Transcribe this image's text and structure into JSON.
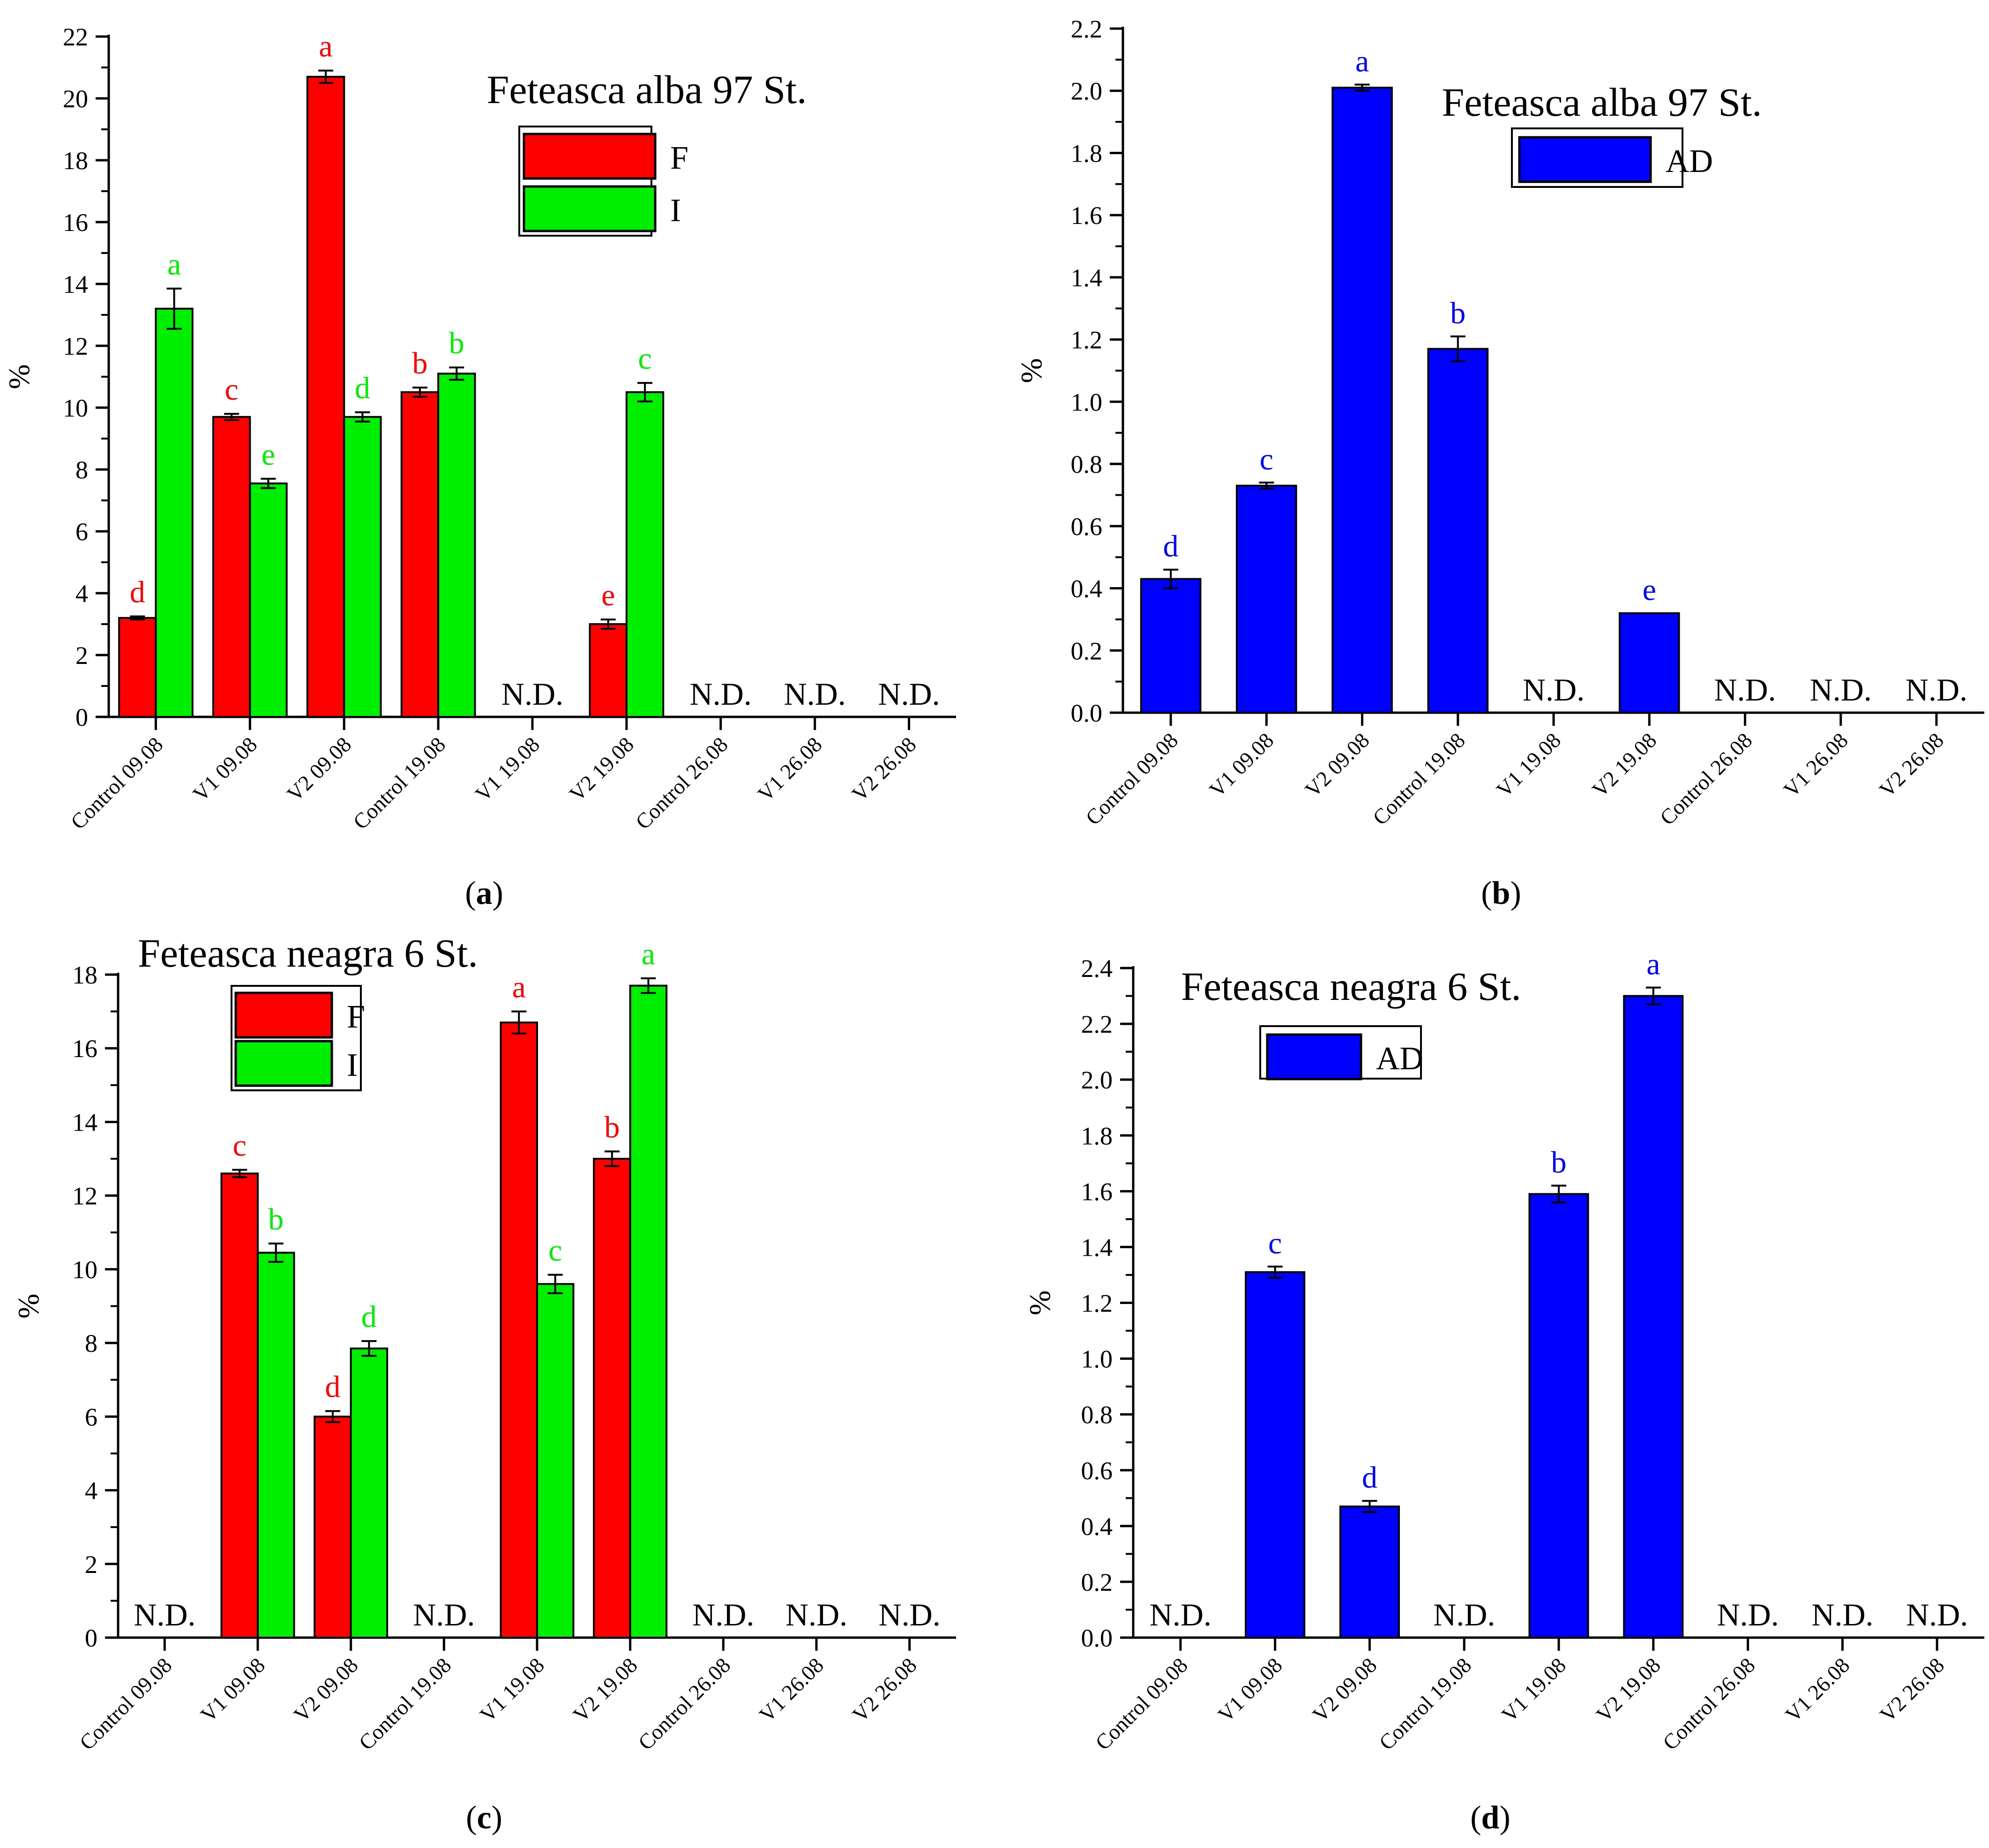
{
  "chart_data": [
    {
      "panel": "a",
      "type": "bar",
      "title": "Feteasca alba 97 St.",
      "ylabel": "%",
      "xlabel": "",
      "ylim": [
        0,
        22
      ],
      "ytick_step": 2,
      "yticks": [
        "0",
        "2",
        "4",
        "6",
        "8",
        "10",
        "12",
        "14",
        "16",
        "18",
        "20",
        "22"
      ],
      "categories": [
        "Control 09.08",
        "V1 09.08",
        "V2 09.08",
        "Control 19.08",
        "V1 19.08",
        "V2 19.08",
        "Control 26.08",
        "V1 26.08",
        "V2 26.08"
      ],
      "legend": {
        "placement": "top-center",
        "entries": [
          "F",
          "I"
        ]
      },
      "series": [
        {
          "name": "F",
          "color": "#ff0000",
          "values": [
            3.2,
            9.7,
            20.7,
            10.5,
            null,
            3.0,
            null,
            null,
            null
          ],
          "errors": [
            0.05,
            0.1,
            0.2,
            0.15,
            null,
            0.15,
            null,
            null,
            null
          ],
          "letters": [
            "d",
            "c",
            "a",
            "b",
            "",
            "e",
            "",
            "",
            ""
          ]
        },
        {
          "name": "I",
          "color": "#00ee00",
          "values": [
            13.2,
            7.55,
            9.7,
            11.1,
            null,
            10.5,
            null,
            null,
            null
          ],
          "errors": [
            0.65,
            0.15,
            0.15,
            0.2,
            null,
            0.3,
            null,
            null,
            null
          ],
          "letters": [
            "a",
            "e",
            "d",
            "b",
            "",
            "c",
            "",
            "",
            ""
          ]
        }
      ],
      "nd_label": "N.D.",
      "nd_categories": [
        4,
        6,
        7,
        8
      ],
      "caption_letter": "a"
    },
    {
      "panel": "b",
      "type": "bar",
      "title": "Feteasca alba 97 St.",
      "ylabel": "%",
      "xlabel": "",
      "ylim": [
        0,
        2.2
      ],
      "ytick_step": 0.2,
      "yticks": [
        "0.0",
        "0.2",
        "0.4",
        "0.6",
        "0.8",
        "1.0",
        "1.2",
        "1.4",
        "1.6",
        "1.8",
        "2.0",
        "2.2"
      ],
      "categories": [
        "Control 09.08",
        "V1 09.08",
        "V2 09.08",
        "Control 19.08",
        "V1 19.08",
        "V2 19.08",
        "Control 26.08",
        "V1 26.08",
        "V2 26.08"
      ],
      "legend": {
        "placement": "top-right",
        "entries": [
          "AD"
        ]
      },
      "series": [
        {
          "name": "AD",
          "color": "#0000ff",
          "values": [
            0.43,
            0.73,
            2.01,
            1.17,
            null,
            0.32,
            null,
            null,
            null
          ],
          "errors": [
            0.03,
            0.01,
            0.01,
            0.04,
            null,
            0.0,
            null,
            null,
            null
          ],
          "letters": [
            "d",
            "c",
            "a",
            "b",
            "",
            "e",
            "",
            "",
            ""
          ]
        }
      ],
      "nd_label": "N.D.",
      "nd_categories": [
        4,
        6,
        7,
        8
      ],
      "caption_letter": "b"
    },
    {
      "panel": "c",
      "type": "bar",
      "title": "Feteasca neagra 6 St.",
      "ylabel": "%",
      "xlabel": "",
      "ylim": [
        0,
        18
      ],
      "ytick_step": 2,
      "yticks": [
        "0",
        "2",
        "4",
        "6",
        "8",
        "10",
        "12",
        "14",
        "16",
        "18"
      ],
      "categories": [
        "Control 09.08",
        "V1 09.08",
        "V2 09.08",
        "Control 19.08",
        "V1 19.08",
        "V2 19.08",
        "Control 26.08",
        "V1 26.08",
        "V2 26.08"
      ],
      "legend": {
        "placement": "top-left",
        "entries": [
          "F",
          "I"
        ]
      },
      "series": [
        {
          "name": "F",
          "color": "#ff0000",
          "values": [
            null,
            12.6,
            6.0,
            null,
            16.7,
            13.0,
            null,
            null,
            null
          ],
          "errors": [
            null,
            0.1,
            0.15,
            null,
            0.3,
            0.2,
            null,
            null,
            null
          ],
          "letters": [
            "",
            "c",
            "d",
            "",
            "a",
            "b",
            "",
            "",
            ""
          ]
        },
        {
          "name": "I",
          "color": "#00ee00",
          "values": [
            null,
            10.45,
            7.85,
            null,
            9.6,
            17.7,
            null,
            null,
            null
          ],
          "errors": [
            null,
            0.25,
            0.2,
            null,
            0.25,
            0.2,
            null,
            null,
            null
          ],
          "letters": [
            "",
            "b",
            "d",
            "",
            "c",
            "a",
            "",
            "",
            ""
          ]
        }
      ],
      "nd_label": "N.D.",
      "nd_categories": [
        0,
        3,
        6,
        7,
        8
      ],
      "caption_letter": "c"
    },
    {
      "panel": "d",
      "type": "bar",
      "title": "Feteasca neagra 6 St.",
      "ylabel": "%",
      "xlabel": "",
      "ylim": [
        0,
        2.4
      ],
      "ytick_step": 0.2,
      "yticks": [
        "0.0",
        "0.2",
        "0.4",
        "0.6",
        "0.8",
        "1.0",
        "1.2",
        "1.4",
        "1.6",
        "1.8",
        "2.0",
        "2.2",
        "2.4"
      ],
      "categories": [
        "Control 09.08",
        "V1 09.08",
        "V2 09.08",
        "Control 19.08",
        "V1 19.08",
        "V2 19.08",
        "Control 26.08",
        "V1 26.08",
        "V2 26.08"
      ],
      "legend": {
        "placement": "top-left",
        "entries": [
          "AD"
        ]
      },
      "series": [
        {
          "name": "AD",
          "color": "#0000ff",
          "values": [
            null,
            1.31,
            0.47,
            null,
            1.59,
            2.3,
            null,
            null,
            null
          ],
          "errors": [
            null,
            0.02,
            0.02,
            null,
            0.03,
            0.03,
            null,
            null,
            null
          ],
          "letters": [
            "",
            "c",
            "d",
            "",
            "b",
            "a",
            "",
            "",
            ""
          ]
        }
      ],
      "nd_label": "N.D.",
      "nd_categories": [
        0,
        3,
        6,
        7,
        8
      ],
      "caption_letter": "d"
    }
  ]
}
